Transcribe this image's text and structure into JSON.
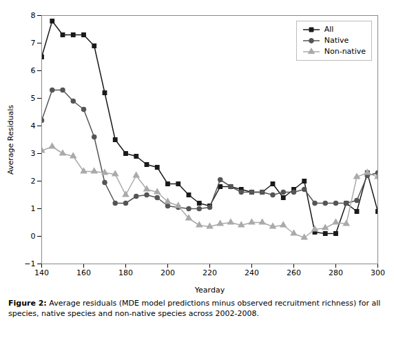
{
  "chart_data": {
    "type": "line",
    "xlabel": "Yearday",
    "ylabel": "Average Residuals",
    "caption": "Figure 2: Average residuals (MDE model predictions minus observed recruitment richness) for all species, native species and non-native species across 2002-2008.",
    "xlim": [
      140,
      300
    ],
    "ylim": [
      -1,
      8
    ],
    "xticks": [
      140,
      160,
      180,
      200,
      220,
      240,
      260,
      280,
      300
    ],
    "yticks": [
      -1,
      0,
      1,
      2,
      3,
      4,
      5,
      6,
      7,
      8
    ],
    "x": [
      140,
      145,
      150,
      155,
      160,
      165,
      170,
      175,
      180,
      185,
      190,
      195,
      200,
      205,
      210,
      215,
      220,
      225,
      230,
      235,
      240,
      245,
      250,
      255,
      260,
      265,
      270,
      275,
      280,
      285,
      290,
      295,
      300
    ],
    "series": [
      {
        "name": "All",
        "color": "#1a1a1a",
        "marker": "square",
        "values": [
          6.5,
          7.8,
          7.3,
          7.3,
          7.3,
          6.9,
          5.2,
          3.5,
          3.0,
          2.9,
          2.6,
          2.5,
          1.9,
          1.9,
          1.5,
          1.2,
          1.1,
          1.8,
          1.8,
          1.7,
          1.6,
          1.6,
          1.9,
          1.4,
          1.7,
          2.0,
          0.15,
          0.1,
          0.1,
          1.2,
          0.9,
          2.3,
          0.9
        ]
      },
      {
        "name": "Native",
        "color": "#555555",
        "marker": "circle",
        "values": [
          4.2,
          5.3,
          5.3,
          4.9,
          4.6,
          3.6,
          1.95,
          1.2,
          1.2,
          1.45,
          1.5,
          1.4,
          1.1,
          1.05,
          1.0,
          1.0,
          1.05,
          2.05,
          1.8,
          1.6,
          1.6,
          1.6,
          1.5,
          1.6,
          1.6,
          1.7,
          1.2,
          1.2,
          1.2,
          1.2,
          1.3,
          2.2,
          2.3
        ]
      },
      {
        "name": "Non-native",
        "color": "#aaaaaa",
        "marker": "triangle",
        "values": [
          3.1,
          3.25,
          3.0,
          2.9,
          2.35,
          2.35,
          2.3,
          2.25,
          1.5,
          2.2,
          1.7,
          1.6,
          1.25,
          1.1,
          0.65,
          0.4,
          0.35,
          0.45,
          0.5,
          0.4,
          0.5,
          0.5,
          0.35,
          0.4,
          0.1,
          -0.05,
          0.25,
          0.3,
          0.5,
          0.45,
          2.15,
          2.3,
          2.15
        ]
      }
    ],
    "legend": "upper right",
    "grid": false
  }
}
